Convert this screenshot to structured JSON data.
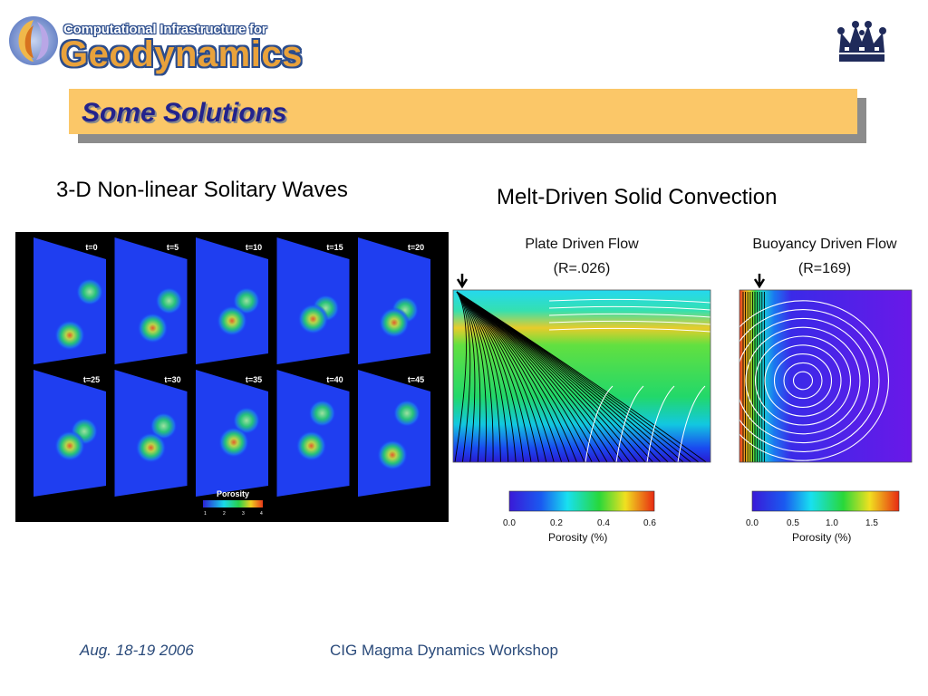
{
  "logo": {
    "line1": "Computational Infrastructure for",
    "line2": "Geodynamics"
  },
  "slide_title": "Some Solutions",
  "left_section": {
    "heading": "3-D Non-linear Solitary Waves",
    "frames": [
      {
        "label": "t=0"
      },
      {
        "label": "t=5"
      },
      {
        "label": "t=10"
      },
      {
        "label": "t=15"
      },
      {
        "label": "t=20"
      },
      {
        "label": "t=25"
      },
      {
        "label": "t=30"
      },
      {
        "label": "t=35"
      },
      {
        "label": "t=40"
      },
      {
        "label": "t=45"
      }
    ],
    "colorbar": {
      "label": "Porosity",
      "ticks": [
        "1",
        "2",
        "3",
        "4"
      ]
    }
  },
  "right_section": {
    "heading": "Melt-Driven Solid Convection",
    "plate": {
      "title": "Plate Driven Flow",
      "subtitle": "(R=.026)",
      "colorbar_ticks": [
        "0.0",
        "0.2",
        "0.4",
        "0.6"
      ],
      "colorbar_label": "Porosity (%)"
    },
    "buoyancy": {
      "title": "Buoyancy Driven Flow",
      "subtitle": "(R=169)",
      "colorbar_ticks": [
        "0.0",
        "0.5",
        "1.0",
        "1.5"
      ],
      "colorbar_label": "Porosity (%)"
    }
  },
  "footer": {
    "date": "Aug. 18-19 2006",
    "event": "CIG Magma Dynamics Workshop"
  },
  "colors": {
    "banner": "#fbc768",
    "title_text": "#23238c",
    "footer_text": "#2a4a7a",
    "logo_orange": "#e9a23b",
    "logo_blue": "#2b4c8c"
  },
  "icons": [
    "cig-logo-icon",
    "columbia-crown-icon",
    "arrow-down-icon"
  ]
}
